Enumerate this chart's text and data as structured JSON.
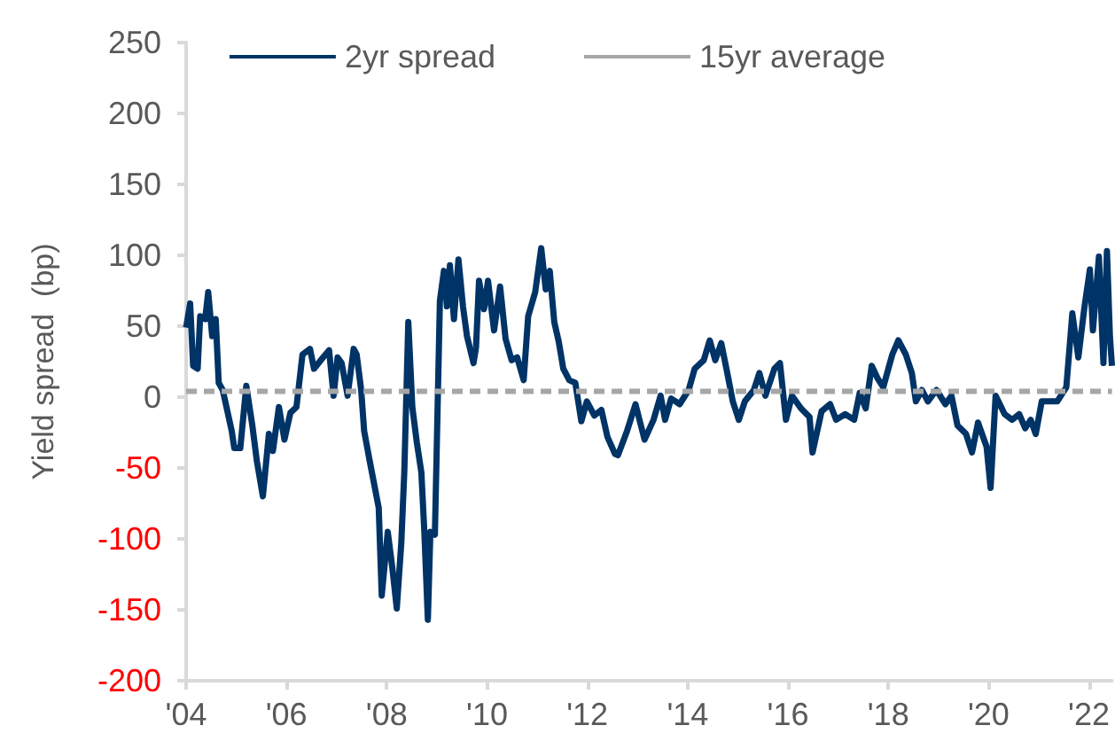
{
  "chart_data": {
    "type": "line",
    "ylabel": "Yield spread  (bp)",
    "xlim": [
      2004,
      2022.46
    ],
    "xticks": [
      {
        "value": 2004,
        "label": "'04"
      },
      {
        "value": 2006,
        "label": "'06"
      },
      {
        "value": 2008,
        "label": "'08"
      },
      {
        "value": 2010,
        "label": "'10"
      },
      {
        "value": 2012,
        "label": "'12"
      },
      {
        "value": 2014,
        "label": "'14"
      },
      {
        "value": 2016,
        "label": "'16"
      },
      {
        "value": 2018,
        "label": "'18"
      },
      {
        "value": 2020,
        "label": "'20"
      },
      {
        "value": 2022,
        "label": "'22"
      }
    ],
    "ylim": [
      -200,
      250
    ],
    "yticks": [
      -200,
      -150,
      -100,
      -50,
      0,
      50,
      100,
      150,
      200,
      250
    ],
    "grid": false,
    "legend": "top",
    "marker": "none",
    "series": [
      {
        "name": "2yr spread",
        "color": "#003366",
        "line_style": "solid",
        "x": [
          2004.0,
          2004.08,
          2004.14,
          2004.23,
          2004.28,
          2004.38,
          2004.44,
          2004.52,
          2004.59,
          2004.65,
          2004.73,
          2004.91,
          2004.96,
          2005.08,
          2005.2,
          2005.32,
          2005.41,
          2005.53,
          2005.65,
          2005.73,
          2005.85,
          2005.96,
          2006.08,
          2006.2,
          2006.32,
          2006.47,
          2006.55,
          2006.73,
          2006.85,
          2006.94,
          2007.02,
          2007.1,
          2007.22,
          2007.34,
          2007.4,
          2007.49,
          2007.55,
          2007.66,
          2007.84,
          2007.9,
          2008.02,
          2008.11,
          2008.2,
          2008.29,
          2008.35,
          2008.43,
          2008.51,
          2008.6,
          2008.69,
          2008.75,
          2008.82,
          2008.87,
          2008.96,
          2009.06,
          2009.14,
          2009.2,
          2009.26,
          2009.34,
          2009.43,
          2009.52,
          2009.6,
          2009.73,
          2009.78,
          2009.84,
          2009.94,
          2010.02,
          2010.14,
          2010.26,
          2010.37,
          2010.49,
          2010.6,
          2010.73,
          2010.82,
          2010.96,
          2011.08,
          2011.17,
          2011.25,
          2011.34,
          2011.43,
          2011.52,
          2011.64,
          2011.76,
          2011.88,
          2011.99,
          2012.14,
          2012.28,
          2012.4,
          2012.55,
          2012.61,
          2012.79,
          2012.96,
          2013.14,
          2013.32,
          2013.46,
          2013.55,
          2013.67,
          2013.84,
          2014.02,
          2014.14,
          2014.32,
          2014.44,
          2014.55,
          2014.67,
          2014.79,
          2014.9,
          2015.02,
          2015.14,
          2015.32,
          2015.43,
          2015.55,
          2015.73,
          2015.84,
          2015.96,
          2016.08,
          2016.26,
          2016.43,
          2016.49,
          2016.67,
          2016.84,
          2016.96,
          2017.14,
          2017.32,
          2017.43,
          2017.55,
          2017.67,
          2017.79,
          2017.9,
          2018.08,
          2018.2,
          2018.35,
          2018.47,
          2018.55,
          2018.67,
          2018.79,
          2018.96,
          2019.14,
          2019.26,
          2019.38,
          2019.55,
          2019.67,
          2019.79,
          2019.96,
          2020.04,
          2020.14,
          2020.32,
          2020.47,
          2020.61,
          2020.73,
          2020.84,
          2020.94,
          2021.06,
          2021.2,
          2021.37,
          2021.55,
          2021.67,
          2021.79,
          2021.91,
          2022.02,
          2022.08,
          2022.2,
          2022.29,
          2022.36,
          2022.42,
          2022.46
        ],
        "values": [
          49,
          66,
          22,
          20,
          57,
          55,
          74,
          43,
          55,
          10,
          5,
          -24,
          -36,
          -36,
          8,
          -20,
          -45,
          -70,
          -26,
          -38,
          -7,
          -30,
          -11,
          -7,
          30,
          34,
          20,
          28,
          33,
          1,
          28,
          24,
          1,
          34,
          30,
          5,
          -24,
          -45,
          -78,
          -140,
          -95,
          -120,
          -149,
          -103,
          -53,
          53,
          -7,
          -32,
          -53,
          -95,
          -157,
          -95,
          -97,
          68,
          89,
          64,
          93,
          55,
          97,
          64,
          43,
          24,
          35,
          82,
          62,
          82,
          47,
          78,
          41,
          26,
          28,
          12,
          57,
          74,
          105,
          76,
          89,
          53,
          39,
          20,
          12,
          10,
          -17,
          -3,
          -13,
          -9,
          -28,
          -40,
          -41,
          -24,
          -5,
          -30,
          -16,
          1,
          -16,
          -1,
          -5,
          5,
          20,
          26,
          40,
          26,
          38,
          17,
          -3,
          -16,
          -3,
          5,
          17,
          1,
          20,
          24,
          -16,
          1,
          -8,
          -14,
          -39,
          -10,
          -5,
          -16,
          -12,
          -16,
          3,
          -8,
          22,
          13,
          7,
          30,
          40,
          30,
          17,
          -3,
          5,
          -3,
          5,
          -5,
          1,
          -20,
          -26,
          -39,
          -18,
          -35,
          -64,
          1,
          -12,
          -16,
          -12,
          -22,
          -16,
          -26,
          -3,
          -3,
          -3,
          7,
          59,
          28,
          63,
          90,
          47,
          99,
          24,
          103,
          42,
          22
        ]
      },
      {
        "name": "15yr average",
        "color": "#a6a6a6",
        "line_style": "dashed",
        "x": [
          2004,
          2022.46
        ],
        "values": [
          4,
          4
        ]
      }
    ]
  }
}
